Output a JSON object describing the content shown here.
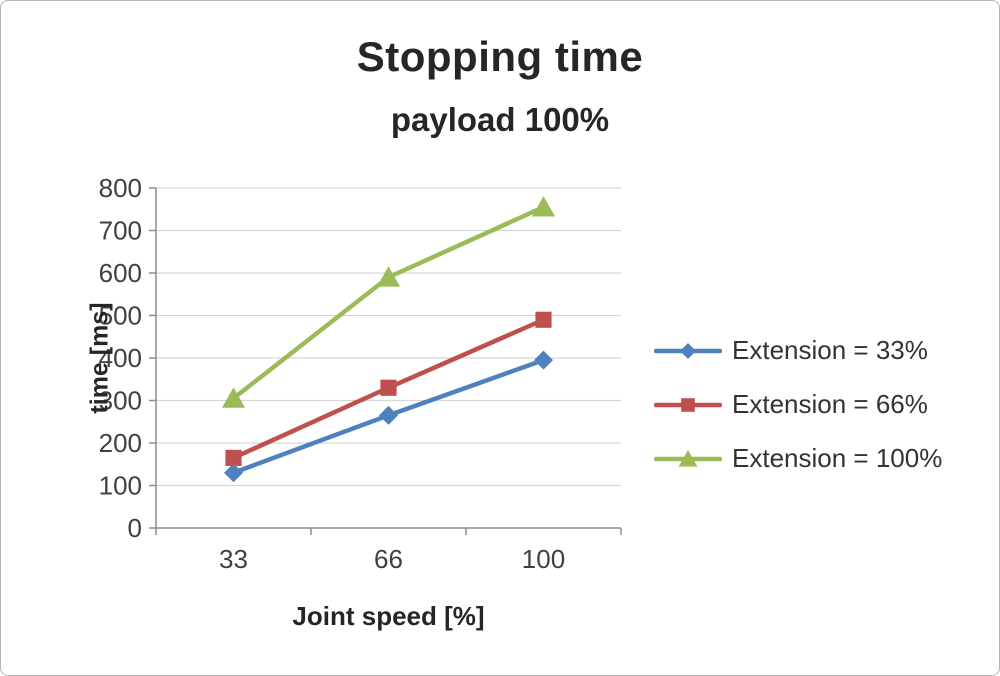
{
  "chart_data": {
    "type": "line",
    "title": "Stopping time",
    "subtitle": "payload 100%",
    "xlabel": "Joint speed [%]",
    "ylabel": "time [ms]",
    "categories": [
      "33",
      "66",
      "100"
    ],
    "series": [
      {
        "name": "Extension = 33%",
        "color": "#4F81BD",
        "marker": "diamond",
        "values": [
          130,
          265,
          395
        ]
      },
      {
        "name": "Extension = 66%",
        "color": "#C0504D",
        "marker": "square",
        "values": [
          165,
          330,
          490
        ]
      },
      {
        "name": "Extension = 100%",
        "color": "#9BBB59",
        "marker": "triangle",
        "values": [
          305,
          590,
          755
        ]
      }
    ],
    "ylim": [
      0,
      800
    ],
    "ytick_step": 100,
    "grid": true,
    "legend_position": "right"
  },
  "colors": {
    "text": "#262626",
    "tick_text": "#404040",
    "axis": "#8c8c8c",
    "grid": "#d6d6d6"
  }
}
